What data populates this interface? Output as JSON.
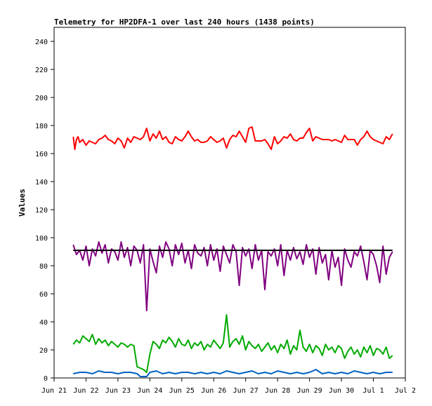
{
  "chart_data": {
    "type": "line",
    "title": "Telemetry for HP2DFA-1 over last 240 hours (1438 points)",
    "xlabel": "",
    "ylabel": "Values",
    "ylim": [
      0,
      250
    ],
    "yticks": [
      0,
      20,
      40,
      60,
      80,
      100,
      120,
      140,
      160,
      180,
      200,
      220,
      240
    ],
    "xlim": [
      0,
      11
    ],
    "xtick_labels": [
      "Jun 21",
      "Jun 22",
      "Jun 23",
      "Jun 24",
      "Jun 25",
      "Jun 26",
      "Jun 27",
      "Jun 28",
      "Jun 29",
      "Jun 30",
      "Jul 1",
      "Jul 2"
    ],
    "x_unit": "days since Jun 21",
    "grid": false,
    "series": [
      {
        "color": "#ff0000",
        "x": [
          0.6,
          0.65,
          0.7,
          0.75,
          0.8,
          0.9,
          1.0,
          1.1,
          1.2,
          1.3,
          1.4,
          1.5,
          1.6,
          1.7,
          1.8,
          1.9,
          2.0,
          2.1,
          2.2,
          2.3,
          2.4,
          2.5,
          2.6,
          2.7,
          2.8,
          2.9,
          3.0,
          3.1,
          3.2,
          3.3,
          3.4,
          3.5,
          3.6,
          3.7,
          3.8,
          3.9,
          4.0,
          4.1,
          4.2,
          4.3,
          4.4,
          4.5,
          4.6,
          4.7,
          4.8,
          4.9,
          5.0,
          5.1,
          5.2,
          5.3,
          5.4,
          5.5,
          5.6,
          5.7,
          5.8,
          5.9,
          6.0,
          6.1,
          6.2,
          6.3,
          6.4,
          6.5,
          6.6,
          6.7,
          6.8,
          6.9,
          7.0,
          7.1,
          7.2,
          7.3,
          7.4,
          7.5,
          7.6,
          7.7,
          7.8,
          7.9,
          8.0,
          8.1,
          8.2,
          8.3,
          8.4,
          8.5,
          8.6,
          8.7,
          8.8,
          8.9,
          9.0,
          9.1,
          9.2,
          9.3,
          9.4,
          9.5,
          9.6,
          9.7,
          9.8,
          9.9,
          10.0,
          10.1,
          10.2,
          10.3,
          10.4,
          10.5,
          10.6
        ],
        "y": [
          172,
          163,
          170,
          172,
          168,
          170,
          166,
          169,
          168,
          167,
          170,
          171,
          173,
          170,
          169,
          167,
          171,
          169,
          164,
          171,
          168,
          172,
          171,
          170,
          172,
          178,
          169,
          174,
          171,
          176,
          170,
          172,
          168,
          167,
          172,
          170,
          169,
          172,
          176,
          172,
          169,
          170,
          168,
          168,
          169,
          172,
          170,
          168,
          169,
          171,
          164,
          170,
          173,
          172,
          176,
          172,
          168,
          178,
          179,
          169,
          169,
          169,
          170,
          167,
          163,
          172,
          167,
          169,
          172,
          171,
          174,
          170,
          169,
          171,
          171,
          175,
          178,
          169,
          172,
          171,
          170,
          170,
          170,
          169,
          170,
          169,
          168,
          173,
          170,
          170,
          170,
          166,
          170,
          172,
          176,
          172,
          170,
          169,
          168,
          167,
          172,
          170,
          174
        ]
      },
      {
        "color": "#800080",
        "x": [
          0.6,
          0.7,
          0.8,
          0.9,
          1.0,
          1.1,
          1.2,
          1.3,
          1.4,
          1.5,
          1.6,
          1.7,
          1.8,
          1.9,
          2.0,
          2.1,
          2.2,
          2.3,
          2.4,
          2.5,
          2.6,
          2.7,
          2.8,
          2.9,
          3.0,
          3.1,
          3.2,
          3.3,
          3.4,
          3.5,
          3.6,
          3.7,
          3.8,
          3.9,
          4.0,
          4.1,
          4.2,
          4.3,
          4.4,
          4.5,
          4.6,
          4.7,
          4.8,
          4.9,
          5.0,
          5.1,
          5.2,
          5.3,
          5.4,
          5.5,
          5.6,
          5.7,
          5.8,
          5.9,
          6.0,
          6.1,
          6.2,
          6.3,
          6.4,
          6.5,
          6.6,
          6.7,
          6.8,
          6.9,
          7.0,
          7.1,
          7.2,
          7.3,
          7.4,
          7.5,
          7.6,
          7.7,
          7.8,
          7.9,
          8.0,
          8.1,
          8.2,
          8.3,
          8.4,
          8.5,
          8.6,
          8.7,
          8.8,
          8.9,
          9.0,
          9.1,
          9.2,
          9.3,
          9.4,
          9.5,
          9.6,
          9.7,
          9.8,
          9.9,
          10.0,
          10.1,
          10.2,
          10.3,
          10.4,
          10.5,
          10.6
        ],
        "y": [
          95,
          88,
          91,
          84,
          94,
          80,
          92,
          87,
          97,
          89,
          95,
          82,
          92,
          90,
          84,
          97,
          86,
          93,
          80,
          94,
          91,
          82,
          95,
          48,
          92,
          83,
          75,
          94,
          86,
          97,
          92,
          80,
          95,
          88,
          96,
          82,
          91,
          78,
          95,
          89,
          87,
          93,
          80,
          95,
          84,
          92,
          76,
          94,
          88,
          82,
          95,
          90,
          66,
          93,
          87,
          92,
          78,
          95,
          84,
          91,
          63,
          90,
          87,
          92,
          80,
          95,
          73,
          91,
          84,
          93,
          85,
          90,
          81,
          95,
          86,
          92,
          74,
          93,
          82,
          88,
          70,
          91,
          79,
          86,
          66,
          92,
          84,
          79,
          90,
          87,
          94,
          83,
          70,
          91,
          88,
          80,
          68,
          94,
          74,
          86,
          90
        ]
      },
      {
        "color": "#000000",
        "x": [
          0.6,
          10.6
        ],
        "y": [
          91,
          91
        ]
      },
      {
        "color": "#00aa00",
        "x": [
          0.6,
          0.7,
          0.8,
          0.9,
          1.0,
          1.1,
          1.2,
          1.3,
          1.4,
          1.5,
          1.6,
          1.7,
          1.8,
          1.9,
          2.0,
          2.1,
          2.2,
          2.3,
          2.4,
          2.5,
          2.6,
          2.7,
          2.8,
          2.9,
          3.0,
          3.1,
          3.2,
          3.3,
          3.4,
          3.5,
          3.6,
          3.7,
          3.8,
          3.9,
          4.0,
          4.1,
          4.2,
          4.3,
          4.4,
          4.5,
          4.6,
          4.7,
          4.8,
          4.9,
          5.0,
          5.1,
          5.2,
          5.3,
          5.4,
          5.5,
          5.6,
          5.7,
          5.8,
          5.9,
          6.0,
          6.1,
          6.2,
          6.3,
          6.4,
          6.5,
          6.6,
          6.7,
          6.8,
          6.9,
          7.0,
          7.1,
          7.2,
          7.3,
          7.4,
          7.5,
          7.6,
          7.7,
          7.8,
          7.9,
          8.0,
          8.1,
          8.2,
          8.3,
          8.4,
          8.5,
          8.6,
          8.7,
          8.8,
          8.9,
          9.0,
          9.1,
          9.2,
          9.3,
          9.4,
          9.5,
          9.6,
          9.7,
          9.8,
          9.9,
          10.0,
          10.1,
          10.2,
          10.3,
          10.4,
          10.5,
          10.6
        ],
        "y": [
          24,
          27,
          25,
          30,
          28,
          26,
          31,
          24,
          28,
          25,
          27,
          23,
          26,
          24,
          22,
          25,
          24,
          22,
          24,
          23,
          8,
          7,
          6,
          4,
          17,
          26,
          24,
          21,
          27,
          25,
          29,
          26,
          22,
          28,
          24,
          23,
          27,
          21,
          25,
          23,
          26,
          20,
          24,
          22,
          27,
          24,
          21,
          25,
          45,
          22,
          26,
          28,
          24,
          30,
          20,
          26,
          23,
          21,
          24,
          19,
          22,
          25,
          20,
          23,
          18,
          24,
          21,
          27,
          17,
          23,
          20,
          34,
          22,
          19,
          24,
          18,
          23,
          21,
          16,
          24,
          20,
          22,
          18,
          23,
          21,
          14,
          19,
          22,
          17,
          20,
          15,
          22,
          18,
          23,
          16,
          21,
          20,
          17,
          22,
          14,
          16
        ]
      },
      {
        "color": "#0060c0",
        "x": [
          0.6,
          0.8,
          1.0,
          1.2,
          1.4,
          1.6,
          1.8,
          2.0,
          2.2,
          2.4,
          2.6,
          2.7,
          2.8,
          2.9,
          3.0,
          3.2,
          3.4,
          3.6,
          3.8,
          4.0,
          4.2,
          4.4,
          4.6,
          4.8,
          5.0,
          5.2,
          5.4,
          5.6,
          5.8,
          6.0,
          6.2,
          6.4,
          6.6,
          6.8,
          7.0,
          7.2,
          7.4,
          7.6,
          7.8,
          8.0,
          8.2,
          8.4,
          8.6,
          8.8,
          9.0,
          9.2,
          9.4,
          9.6,
          9.8,
          10.0,
          10.2,
          10.4,
          10.6
        ],
        "y": [
          3,
          4,
          4,
          3,
          5,
          4,
          4,
          3,
          4,
          4,
          3,
          1,
          1,
          1,
          4,
          5,
          3,
          4,
          3,
          4,
          4,
          3,
          4,
          3,
          4,
          3,
          5,
          4,
          3,
          4,
          5,
          3,
          4,
          3,
          5,
          4,
          3,
          4,
          3,
          4,
          6,
          3,
          4,
          3,
          4,
          3,
          5,
          4,
          3,
          4,
          3,
          4,
          4
        ]
      }
    ]
  }
}
